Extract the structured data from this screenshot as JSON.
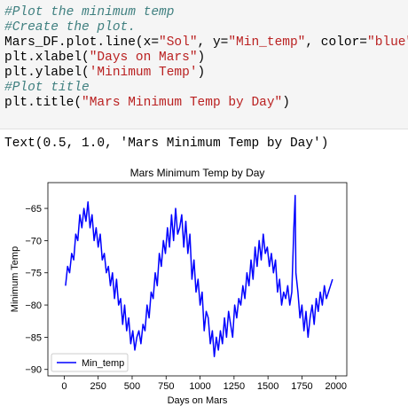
{
  "code": {
    "line1": "#Plot the minimum temp",
    "line2": "#Create the plot.",
    "line3_prefix": "Mars_DF.plot.line(x=",
    "line3_x": "\"Sol\"",
    "line3_mid": ", y=",
    "line3_y": "\"Min_temp\"",
    "line3_mid2": ", color=",
    "line3_color": "\"blue\"",
    "line3_end": ")",
    "line4_prefix": "plt.xlabel(",
    "line4_arg": "\"Days on Mars\"",
    "line4_end": ")",
    "line5_prefix": "plt.ylabel(",
    "line5_arg": "'Minimum Temp'",
    "line5_end": ")",
    "line6": "#Plot title",
    "line7_prefix": "plt.title(",
    "line7_arg": "\"Mars Minimum Temp by Day\"",
    "line7_end": ")"
  },
  "output": {
    "text": "Text(0.5, 1.0, 'Mars Minimum Temp by Day')"
  },
  "chart_data": {
    "type": "line",
    "title": "Mars Minimum Temp by Day",
    "xlabel": "Days on Mars",
    "ylabel": "Minimum Temp",
    "xlim": [
      -120,
      2080
    ],
    "ylim": [
      -91,
      -61
    ],
    "xticks": [
      0,
      250,
      500,
      750,
      1000,
      1250,
      1500,
      1750,
      2000
    ],
    "yticks": [
      -65,
      -70,
      -75,
      -80,
      -85,
      -90
    ],
    "legend": "lower-left",
    "grid": false,
    "series": [
      {
        "name": "Min_temp",
        "color": "#0000ff",
        "x": [
          10,
          25,
          40,
          55,
          70,
          85,
          100,
          115,
          130,
          145,
          160,
          175,
          190,
          205,
          220,
          235,
          250,
          265,
          280,
          295,
          310,
          325,
          340,
          355,
          370,
          385,
          400,
          415,
          430,
          445,
          460,
          475,
          490,
          505,
          520,
          535,
          550,
          565,
          580,
          595,
          610,
          625,
          640,
          655,
          670,
          685,
          700,
          715,
          730,
          745,
          760,
          775,
          790,
          805,
          820,
          835,
          850,
          865,
          880,
          895,
          910,
          925,
          940,
          955,
          970,
          985,
          1000,
          1015,
          1030,
          1045,
          1060,
          1075,
          1090,
          1105,
          1120,
          1135,
          1150,
          1165,
          1180,
          1195,
          1210,
          1225,
          1240,
          1255,
          1270,
          1285,
          1300,
          1315,
          1330,
          1345,
          1360,
          1375,
          1390,
          1405,
          1420,
          1435,
          1450,
          1465,
          1480,
          1495,
          1510,
          1525,
          1540,
          1555,
          1570,
          1585,
          1600,
          1615,
          1630,
          1645,
          1660,
          1675,
          1690,
          1700,
          1705,
          1720,
          1735,
          1750,
          1765,
          1780,
          1795,
          1810,
          1825,
          1840,
          1855,
          1870,
          1885,
          1900,
          1915,
          1930,
          1945,
          1960,
          1975
        ],
        "values": [
          -77,
          -74,
          -75,
          -72,
          -73,
          -69,
          -70,
          -66,
          -68,
          -65,
          -67,
          -64,
          -68,
          -66,
          -70,
          -68,
          -71,
          -69,
          -73,
          -72,
          -75,
          -74,
          -77,
          -75,
          -79,
          -76,
          -80,
          -79,
          -83,
          -80,
          -84,
          -82,
          -86,
          -84,
          -87,
          -85,
          -84,
          -86,
          -83,
          -84,
          -80,
          -82,
          -78,
          -79,
          -75,
          -77,
          -72,
          -74,
          -70,
          -72,
          -68,
          -71,
          -66,
          -70,
          -65,
          -69,
          -68,
          -66,
          -71,
          -67,
          -72,
          -69,
          -76,
          -73,
          -78,
          -76,
          -80,
          -78,
          -84,
          -81,
          -82,
          -86,
          -84,
          -88,
          -85,
          -87,
          -84,
          -86,
          -82,
          -85,
          -81,
          -83,
          -85,
          -80,
          -82,
          -79,
          -80,
          -77,
          -79,
          -75,
          -77,
          -73,
          -76,
          -71,
          -74,
          -70,
          -73,
          -69,
          -72,
          -71,
          -74,
          -72,
          -75,
          -73,
          -78,
          -76,
          -80,
          -78,
          -79,
          -77,
          -80,
          -78,
          -68,
          -63,
          -75,
          -78,
          -82,
          -80,
          -84,
          -81,
          -85,
          -82,
          -80,
          -83,
          -79,
          -81,
          -78,
          -80,
          -77,
          -79,
          -78,
          -77,
          -76
        ]
      }
    ]
  }
}
